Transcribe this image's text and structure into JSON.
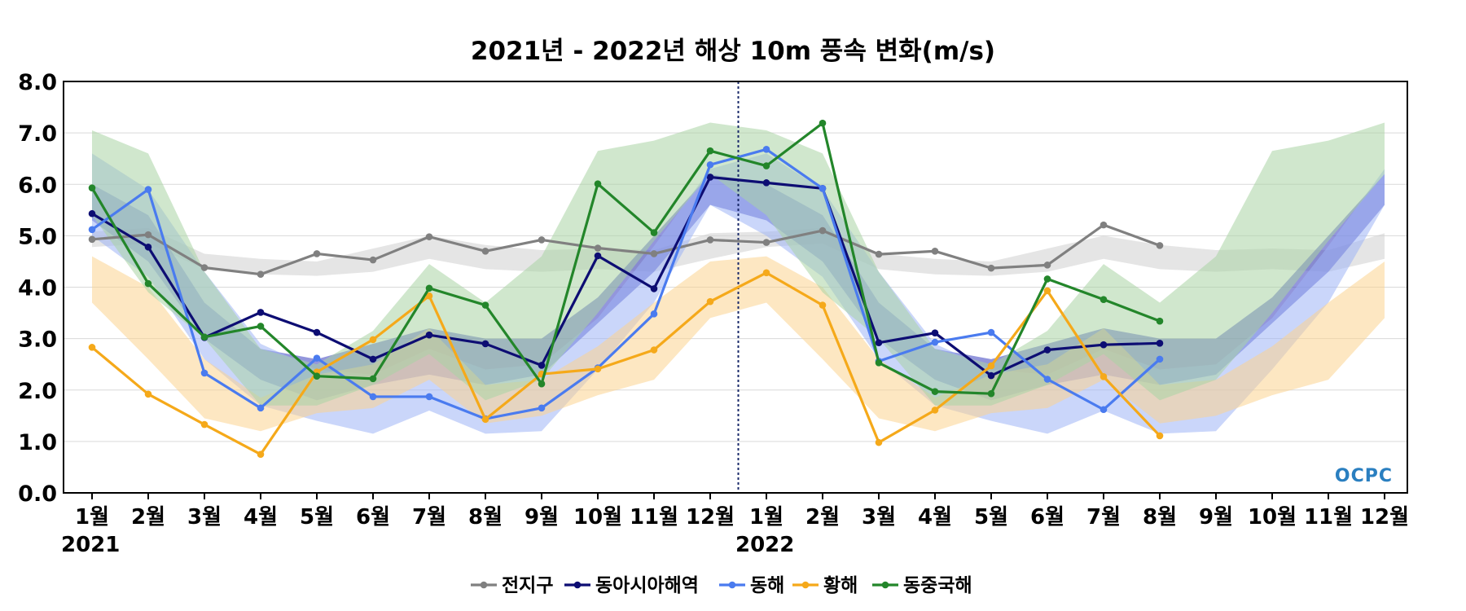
{
  "chart_data": {
    "type": "line",
    "title": "2021년 - 2022년 해상 10m 풍속 변화(m/s)",
    "ylim": [
      0,
      8
    ],
    "y_ticks": [
      "0.0",
      "1.0",
      "2.0",
      "3.0",
      "4.0",
      "5.0",
      "6.0",
      "7.0",
      "8.0"
    ],
    "grid": true,
    "legend_position": "bottom-center",
    "categories": [
      "1월",
      "2월",
      "3월",
      "4월",
      "5월",
      "6월",
      "7월",
      "8월",
      "9월",
      "10월",
      "11월",
      "12월",
      "1월",
      "2월",
      "3월",
      "4월",
      "5월",
      "6월",
      "7월",
      "8월",
      "9월",
      "10월",
      "11월",
      "12월"
    ],
    "year_labels": [
      {
        "label": "2021",
        "index": 0
      },
      {
        "label": "2022",
        "index": 12
      }
    ],
    "year_divider_index": 11.5,
    "logo_text": "OCPC",
    "series": [
      {
        "name": "전지구",
        "color": "#808080",
        "values": [
          4.93,
          5.02,
          4.38,
          4.25,
          4.65,
          4.53,
          4.98,
          4.7,
          4.92,
          4.76,
          4.65,
          4.92,
          4.87,
          5.1,
          4.64,
          4.7,
          4.37,
          4.43,
          5.21,
          4.81,
          null,
          null,
          null,
          null
        ],
        "band_color": "#d0d0d0",
        "band_lower": [
          4.78,
          4.85,
          4.35,
          4.25,
          4.22,
          4.3,
          4.55,
          4.35,
          4.3,
          4.35,
          4.3,
          4.55,
          4.78,
          4.85,
          4.35,
          4.25,
          4.22,
          4.3,
          4.55,
          4.35,
          4.3,
          4.35,
          4.3,
          4.55
        ],
        "band_upper": [
          5.08,
          5.15,
          4.65,
          4.55,
          4.5,
          4.75,
          5.0,
          4.82,
          4.72,
          4.75,
          4.72,
          5.05,
          5.08,
          5.15,
          4.65,
          4.55,
          4.5,
          4.75,
          5.0,
          4.82,
          4.72,
          4.75,
          4.72,
          5.05
        ]
      },
      {
        "name": "동아시아해역",
        "color": "#0d0d73",
        "values": [
          5.43,
          4.78,
          3.02,
          3.51,
          3.12,
          2.6,
          3.07,
          2.9,
          2.48,
          4.61,
          3.97,
          6.14,
          6.03,
          5.92,
          2.92,
          3.11,
          2.28,
          2.78,
          2.88,
          2.91,
          null,
          null,
          null,
          null
        ],
        "band_color": "#3a3fc0",
        "band_lower": [
          5.3,
          4.5,
          3.0,
          2.2,
          1.8,
          2.1,
          2.3,
          2.1,
          2.3,
          3.3,
          4.3,
          5.6,
          5.3,
          4.5,
          3.0,
          2.2,
          1.8,
          2.1,
          2.3,
          2.1,
          2.3,
          3.3,
          4.3,
          5.6
        ],
        "band_upper": [
          6.0,
          5.4,
          3.7,
          2.8,
          2.6,
          2.9,
          3.2,
          3.0,
          3.0,
          3.8,
          5.0,
          6.2,
          6.0,
          5.4,
          3.7,
          2.8,
          2.6,
          2.9,
          3.2,
          3.0,
          3.0,
          3.8,
          5.0,
          6.2
        ]
      },
      {
        "name": "동해",
        "color": "#4a7bef",
        "values": [
          5.12,
          5.9,
          2.33,
          1.65,
          2.62,
          1.87,
          1.87,
          1.44,
          1.65,
          2.43,
          3.48,
          6.38,
          6.68,
          5.92,
          2.56,
          2.93,
          3.12,
          2.21,
          1.62,
          2.6,
          null,
          null,
          null,
          null
        ],
        "band_color": "#9fb4f5",
        "band_lower": [
          5.0,
          4.2,
          2.6,
          1.7,
          1.4,
          1.15,
          1.6,
          1.15,
          1.2,
          2.4,
          3.7,
          5.6,
          5.0,
          4.2,
          2.6,
          1.7,
          1.4,
          1.15,
          1.6,
          1.15,
          1.2,
          2.4,
          3.7,
          5.6
        ],
        "band_upper": [
          6.6,
          5.9,
          4.3,
          2.9,
          2.4,
          2.3,
          2.8,
          2.4,
          2.5,
          3.4,
          4.8,
          6.3,
          6.6,
          5.9,
          4.3,
          2.9,
          2.4,
          2.3,
          2.8,
          2.4,
          2.5,
          3.4,
          4.8,
          6.3
        ]
      },
      {
        "name": "황해",
        "color": "#f5a91a",
        "values": [
          2.83,
          1.92,
          1.33,
          0.75,
          2.35,
          2.98,
          3.83,
          1.43,
          2.31,
          2.41,
          2.78,
          3.72,
          4.28,
          3.65,
          0.98,
          1.61,
          2.47,
          3.93,
          2.26,
          1.11,
          null,
          null,
          null,
          null
        ],
        "band_color": "#fbd48f",
        "band_lower": [
          3.7,
          2.6,
          1.45,
          1.2,
          1.55,
          1.65,
          2.2,
          1.35,
          1.5,
          1.9,
          2.2,
          3.4,
          3.7,
          2.6,
          1.45,
          1.2,
          1.55,
          1.65,
          2.2,
          1.35,
          1.5,
          1.9,
          2.2,
          3.4
        ],
        "band_upper": [
          4.6,
          4.0,
          2.6,
          1.85,
          2.3,
          2.5,
          3.2,
          2.1,
          2.2,
          2.85,
          3.7,
          4.5,
          4.6,
          4.0,
          2.6,
          1.85,
          2.3,
          2.5,
          3.2,
          2.1,
          2.2,
          2.85,
          3.7,
          4.5
        ]
      },
      {
        "name": "동중국해",
        "color": "#23862a",
        "values": [
          5.93,
          4.07,
          3.03,
          3.24,
          2.27,
          2.22,
          3.98,
          3.65,
          2.12,
          6.01,
          5.06,
          6.65,
          6.36,
          7.19,
          2.53,
          1.97,
          1.93,
          4.16,
          3.76,
          3.34,
          null,
          null,
          null,
          null
        ],
        "band_color": "#a9d3a4",
        "band_lower": [
          5.4,
          3.9,
          3.0,
          1.7,
          1.7,
          2.1,
          2.7,
          1.8,
          2.2,
          3.5,
          4.9,
          6.2,
          5.4,
          3.9,
          3.0,
          1.7,
          1.7,
          2.1,
          2.7,
          1.8,
          2.2,
          3.5,
          4.9,
          6.2
        ],
        "band_upper": [
          7.05,
          6.6,
          4.3,
          2.8,
          2.5,
          3.15,
          4.45,
          3.7,
          4.6,
          6.65,
          6.85,
          7.2,
          7.05,
          6.6,
          4.3,
          2.8,
          2.5,
          3.15,
          4.45,
          3.7,
          4.6,
          6.65,
          6.85,
          7.2
        ]
      }
    ]
  }
}
